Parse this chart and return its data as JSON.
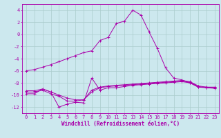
{
  "background_color": "#cce8ee",
  "grid_color": "#aacccc",
  "line_color": "#aa00aa",
  "marker": "+",
  "x_label": "Windchill (Refroidissement éolien,°C)",
  "x_ticks": [
    0,
    1,
    2,
    3,
    4,
    5,
    6,
    7,
    8,
    9,
    10,
    11,
    12,
    13,
    14,
    15,
    16,
    17,
    18,
    19,
    20,
    21,
    22,
    23
  ],
  "ylim": [
    -13,
    5
  ],
  "yticks": [
    -12,
    -10,
    -8,
    -6,
    -4,
    -2,
    0,
    2,
    4
  ],
  "series_x": [
    0,
    1,
    2,
    3,
    4,
    5,
    6,
    7,
    8,
    9,
    10,
    11,
    12,
    13,
    14,
    15,
    16,
    17,
    18,
    19,
    20,
    21,
    22,
    23
  ],
  "series": [
    [
      -6.0,
      -5.8,
      -5.4,
      -5.0,
      -4.5,
      -4.0,
      -3.5,
      -3.0,
      -2.7,
      -1.0,
      -0.5,
      1.8,
      2.2,
      4.0,
      3.2,
      0.4,
      -2.3,
      -5.5,
      -7.2,
      -7.5,
      -8.0,
      -8.7,
      -8.7,
      -8.8
    ],
    [
      -9.8,
      -9.8,
      -9.0,
      -9.5,
      -12.0,
      -11.5,
      -11.2,
      -11.3,
      -7.2,
      -9.2,
      -8.8,
      -8.8,
      -8.6,
      -8.4,
      -8.3,
      -8.2,
      -8.1,
      -8.0,
      -7.9,
      -7.8,
      -8.0,
      -8.7,
      -8.8,
      -8.9
    ],
    [
      -9.5,
      -9.5,
      -9.2,
      -9.8,
      -10.2,
      -11.0,
      -11.0,
      -10.8,
      -9.5,
      -8.8,
      -8.6,
      -8.5,
      -8.4,
      -8.3,
      -8.2,
      -8.1,
      -8.0,
      -7.9,
      -7.8,
      -7.7,
      -7.9,
      -8.6,
      -8.8,
      -8.8
    ],
    [
      -9.3,
      -9.3,
      -9.0,
      -9.5,
      -10.0,
      -10.5,
      -10.8,
      -10.8,
      -9.2,
      -8.7,
      -8.5,
      -8.4,
      -8.3,
      -8.2,
      -8.1,
      -8.0,
      -7.9,
      -7.8,
      -7.7,
      -7.6,
      -7.8,
      -8.5,
      -8.7,
      -8.7
    ]
  ],
  "tick_fontsize": 5,
  "xlabel_fontsize": 5.5,
  "linewidth": 0.7,
  "markersize": 2.5
}
